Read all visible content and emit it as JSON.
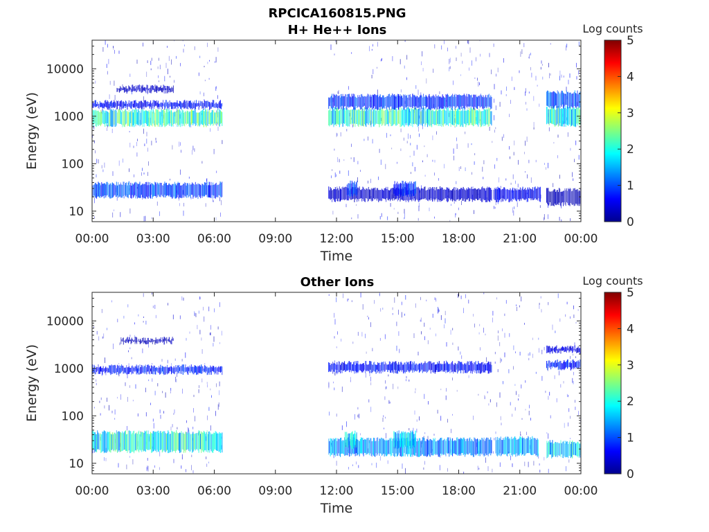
{
  "figure": {
    "file_title": "RPCICA160815.PNG"
  },
  "chart_data": [
    {
      "type": "heatmap",
      "title": "H+ He++ Ions",
      "xlabel": "Time",
      "ylabel": "Energy (eV)",
      "x_ticks": [
        "00:00",
        "03:00",
        "06:00",
        "09:00",
        "12:00",
        "15:00",
        "18:00",
        "21:00",
        "00:00"
      ],
      "xlim_hours": [
        0,
        24
      ],
      "y_scale": "log",
      "y_ticks": [
        10,
        100,
        1000,
        10000
      ],
      "y_tick_labels": [
        "10",
        "100",
        "1000",
        "10000"
      ],
      "ylim": [
        6,
        40000
      ],
      "colorbar": {
        "label": "Log counts",
        "min": 0,
        "max": 5,
        "ticks": [
          "0",
          "1",
          "2",
          "3",
          "4",
          "5"
        ],
        "colormap": "jet"
      },
      "data_gaps_hours": [
        [
          6.4,
          11.6
        ]
      ],
      "bands": [
        {
          "t": [
            0,
            6.4
          ],
          "e": [
            650,
            1300
          ],
          "level": 2.2
        },
        {
          "t": [
            0,
            6.4
          ],
          "e": [
            1500,
            2000
          ],
          "level": 0.7
        },
        {
          "t": [
            1.2,
            4.0
          ],
          "e": [
            3300,
            4200
          ],
          "level": 0.4
        },
        {
          "t": [
            0,
            6.4
          ],
          "e": [
            20,
            38
          ],
          "level": 1.0
        },
        {
          "t": [
            11.6,
            19.6
          ],
          "e": [
            650,
            1400
          ],
          "level": 2.1
        },
        {
          "t": [
            11.6,
            19.6
          ],
          "e": [
            1500,
            2700
          ],
          "level": 0.9
        },
        {
          "t": [
            11.6,
            19.6
          ],
          "e": [
            17,
            30
          ],
          "level": 0.4
        },
        {
          "t": [
            12.5,
            13.0
          ],
          "e": [
            22,
            40
          ],
          "level": 0.9
        },
        {
          "t": [
            14.8,
            15.9
          ],
          "e": [
            22,
            40
          ],
          "level": 0.9
        },
        {
          "t": [
            19.7,
            22.0
          ],
          "e": [
            17,
            30
          ],
          "level": 0.6
        },
        {
          "t": [
            22.3,
            24
          ],
          "e": [
            650,
            1500
          ],
          "level": 2.0
        },
        {
          "t": [
            22.3,
            24
          ],
          "e": [
            1600,
            3200
          ],
          "level": 1.1
        },
        {
          "t": [
            22.3,
            24
          ],
          "e": [
            14,
            28
          ],
          "level": 0.3
        }
      ]
    },
    {
      "type": "heatmap",
      "title": "Other Ions",
      "xlabel": "Time",
      "ylabel": "Energy (eV)",
      "x_ticks": [
        "00:00",
        "03:00",
        "06:00",
        "09:00",
        "12:00",
        "15:00",
        "18:00",
        "21:00",
        "00:00"
      ],
      "xlim_hours": [
        0,
        24
      ],
      "y_scale": "log",
      "y_ticks": [
        10,
        100,
        1000,
        10000
      ],
      "y_tick_labels": [
        "10",
        "100",
        "1000",
        "10000"
      ],
      "ylim": [
        6,
        40000
      ],
      "colorbar": {
        "label": "Log counts",
        "min": 0,
        "max": 5,
        "ticks": [
          "0",
          "1",
          "2",
          "3",
          "4",
          "5"
        ],
        "colormap": "jet"
      },
      "data_gaps_hours": [
        [
          6.4,
          11.6
        ]
      ],
      "bands": [
        {
          "t": [
            0,
            6.4
          ],
          "e": [
            800,
            1100
          ],
          "level": 0.8
        },
        {
          "t": [
            1.4,
            4.0
          ],
          "e": [
            3500,
            4200
          ],
          "level": 0.3
        },
        {
          "t": [
            0,
            6.4
          ],
          "e": [
            18,
            45
          ],
          "level": 2.0
        },
        {
          "t": [
            11.6,
            19.6
          ],
          "e": [
            850,
            1300
          ],
          "level": 0.7
        },
        {
          "t": [
            11.6,
            19.6
          ],
          "e": [
            15,
            32
          ],
          "level": 1.4
        },
        {
          "t": [
            12.4,
            13.0
          ],
          "e": [
            22,
            45
          ],
          "level": 1.8
        },
        {
          "t": [
            14.8,
            15.9
          ],
          "e": [
            22,
            45
          ],
          "level": 1.8
        },
        {
          "t": [
            19.8,
            21.9
          ],
          "e": [
            15,
            34
          ],
          "level": 1.5
        },
        {
          "t": [
            22.3,
            24
          ],
          "e": [
            1000,
            1400
          ],
          "level": 0.8
        },
        {
          "t": [
            22.3,
            24
          ],
          "e": [
            2200,
            2800
          ],
          "level": 0.5
        },
        {
          "t": [
            22.3,
            24
          ],
          "e": [
            14,
            28
          ],
          "level": 1.8
        }
      ]
    }
  ]
}
